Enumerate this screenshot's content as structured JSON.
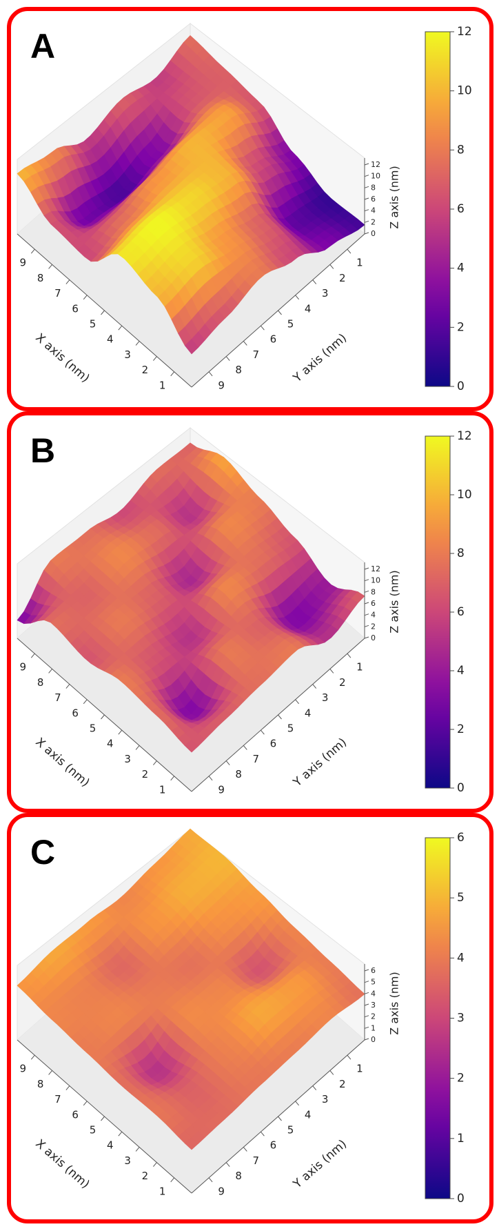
{
  "chart_data": [
    {
      "panel_label": "A",
      "type": "surface3d",
      "xlabel": "X axis (nm)",
      "ylabel": "Y axis (nm)",
      "zlabel": "Z axis (nm)",
      "x_ticks": [
        1,
        2,
        3,
        4,
        5,
        6,
        7,
        8,
        9
      ],
      "y_ticks": [
        1,
        2,
        3,
        4,
        5,
        6,
        7,
        8,
        9
      ],
      "z_ticks": [
        0,
        2,
        4,
        6,
        8,
        10,
        12
      ],
      "colorbar_ticks": [
        0,
        2,
        4,
        6,
        8,
        10,
        12
      ],
      "colormap": "plasma",
      "zlim": [
        0,
        12
      ],
      "grid_xy": [
        0,
        2,
        4,
        6,
        8,
        10
      ],
      "z_grid": [
        [
          1.5,
          1.0,
          3.0,
          6.5,
          7.0,
          7.5
        ],
        [
          3.0,
          2.0,
          6.0,
          9.5,
          6.5,
          5.5
        ],
        [
          6.0,
          7.0,
          10.0,
          10.0,
          3.0,
          7.0
        ],
        [
          8.0,
          9.0,
          11.0,
          9.0,
          1.5,
          5.5
        ],
        [
          6.5,
          11.0,
          12.0,
          7.5,
          2.5,
          8.5
        ],
        [
          5.5,
          10.0,
          11.5,
          6.0,
          6.5,
          10.0
        ]
      ]
    },
    {
      "panel_label": "B",
      "type": "surface3d",
      "xlabel": "X axis (nm)",
      "ylabel": "Y axis (nm)",
      "zlabel": "Z axis (nm)",
      "x_ticks": [
        1,
        2,
        3,
        4,
        5,
        6,
        7,
        8,
        9
      ],
      "y_ticks": [
        1,
        2,
        3,
        4,
        5,
        6,
        7,
        8,
        9
      ],
      "z_ticks": [
        0,
        2,
        4,
        6,
        8,
        10,
        12
      ],
      "colorbar_ticks": [
        0,
        2,
        4,
        6,
        8,
        10,
        12
      ],
      "colormap": "plasma",
      "zlim": [
        0,
        12
      ],
      "grid_xy": [
        0,
        2,
        4,
        6,
        8,
        10
      ],
      "z_grid": [
        [
          7.0,
          4.0,
          6.5,
          8.0,
          9.5,
          7.0
        ],
        [
          5.0,
          3.0,
          7.5,
          8.5,
          5.0,
          7.5
        ],
        [
          8.0,
          7.0,
          8.5,
          4.5,
          7.5,
          6.0
        ],
        [
          7.5,
          8.0,
          5.0,
          7.0,
          8.5,
          7.5
        ],
        [
          7.0,
          3.0,
          6.5,
          8.0,
          7.0,
          8.0
        ],
        [
          6.5,
          7.5,
          8.0,
          6.5,
          7.5,
          3.0
        ]
      ]
    },
    {
      "panel_label": "C",
      "type": "surface3d",
      "xlabel": "X axis (nm)",
      "ylabel": "Y axis (nm)",
      "zlabel": "Z axis (nm)",
      "x_ticks": [
        1,
        2,
        3,
        4,
        5,
        6,
        7,
        8,
        9
      ],
      "y_ticks": [
        1,
        2,
        3,
        4,
        5,
        6,
        7,
        8,
        9
      ],
      "z_ticks": [
        0,
        1,
        2,
        3,
        4,
        5,
        6
      ],
      "colorbar_ticks": [
        0,
        1,
        2,
        3,
        4,
        5,
        6
      ],
      "colormap": "plasma",
      "zlim": [
        0,
        6
      ],
      "grid_xy": [
        0,
        2,
        4,
        6,
        8,
        10
      ],
      "z_grid": [
        [
          3.8,
          4.0,
          4.2,
          4.6,
          5.0,
          4.8
        ],
        [
          4.2,
          4.6,
          3.2,
          4.4,
          4.9,
          4.5
        ],
        [
          4.0,
          4.8,
          4.2,
          3.8,
          4.5,
          4.2
        ],
        [
          3.9,
          4.1,
          4.3,
          4.0,
          3.6,
          4.6
        ],
        [
          3.7,
          3.5,
          2.5,
          4.2,
          4.1,
          4.8
        ],
        [
          3.6,
          3.9,
          3.8,
          4.0,
          4.2,
          4.5
        ]
      ]
    }
  ],
  "colors": {
    "frame": "#ff0000",
    "pane": "#f0f0f0",
    "floor": "#ebebeb"
  }
}
